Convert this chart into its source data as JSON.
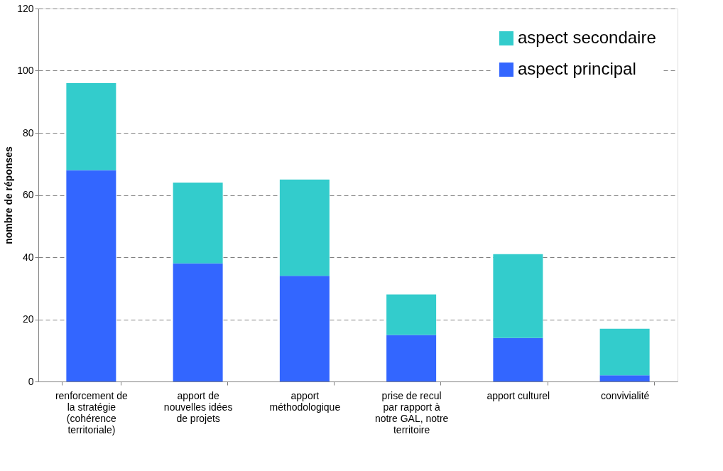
{
  "chart_data": {
    "type": "bar",
    "stacked": true,
    "ylabel": "nombre de réponses",
    "categories": [
      "renforcement de la stratégie (cohérence territoriale)",
      "apport de nouvelles idées de projets",
      "apport méthodologique",
      "prise de recul par rapport à notre GAL, notre territoire",
      "apport culturel",
      "convivialité"
    ],
    "series": [
      {
        "name": "aspect principal",
        "color": "#3366ff",
        "values": [
          68,
          38,
          34,
          15,
          14,
          2
        ]
      },
      {
        "name": "aspect secondaire",
        "color": "#33cccc",
        "values": [
          28,
          26,
          31,
          13,
          27,
          15
        ]
      }
    ],
    "ylim": [
      0,
      120
    ],
    "yticks": [
      0,
      20,
      40,
      60,
      80,
      100,
      120
    ],
    "grid": "y",
    "legend": "top right"
  }
}
